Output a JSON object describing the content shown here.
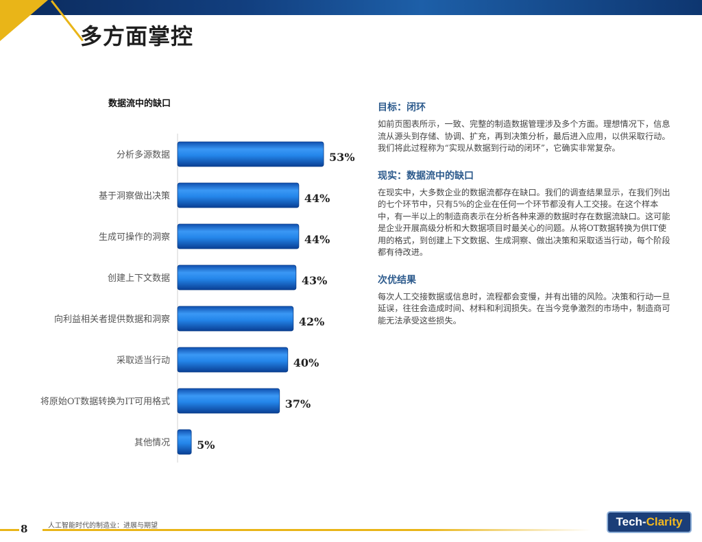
{
  "page": {
    "title": "多方面掌控",
    "page_number": "8",
    "footer_text": "人工智能时代的制造业：进展与期望",
    "logo_part1": "Tech-",
    "logo_part2": "Clarity",
    "colors": {
      "accent_yellow": "#e9b518",
      "bar_blue": "#1f7fe0",
      "heading_blue": "#2c5a8c",
      "header_navy": "#0b2a5c"
    }
  },
  "chart_data": {
    "type": "bar",
    "orientation": "horizontal",
    "title": "数据流中的缺口",
    "categories": [
      "分析多源数据",
      "基于洞察做出决策",
      "生成可操作的洞察",
      "创建上下文数据",
      "向利益相关者提供数据和洞察",
      "采取适当行动",
      "将原始OT数据转换为IT可用格式",
      "其他情况"
    ],
    "values": [
      53,
      44,
      44,
      43,
      42,
      40,
      37,
      5
    ],
    "value_labels": [
      "53%",
      "44%",
      "44%",
      "43%",
      "42%",
      "40%",
      "37%",
      "5%"
    ],
    "unit": "%",
    "xlim": [
      0,
      100
    ],
    "grid": false,
    "legend": "none"
  },
  "sections": [
    {
      "heading": "目标：闭环",
      "body": "如前页图表所示，一致、完整的制造数据管理涉及多个方面。理想情况下，信息流从源头到存储、协调、扩充，再到决策分析，最后进入应用，以供采取行动。我们将此过程称为“实现从数据到行动的闭环”，它确实非常复杂。"
    },
    {
      "heading": "现实：数据流中的缺口",
      "body": "在现实中，大多数企业的数据流都存在缺口。我们的调查结果显示，在我们列出的七个环节中，只有5%的企业在任何一个环节都没有人工交接。在这个样本中，有一半以上的制造商表示在分析各种来源的数据时存在数据流缺口。这可能是企业开展高级分析和大数据项目时最关心的问题。从将OT数据转换为供IT使用的格式，到创建上下文数据、生成洞察、做出决策和采取适当行动，每个阶段都有待改进。"
    },
    {
      "heading": "次优结果",
      "body": "每次人工交接数据或信息时，流程都会变慢，并有出错的风险。决策和行动一旦延误，往往会造成时间、材料和利润损失。在当今竞争激烈的市场中，制造商可能无法承受这些损失。"
    }
  ]
}
